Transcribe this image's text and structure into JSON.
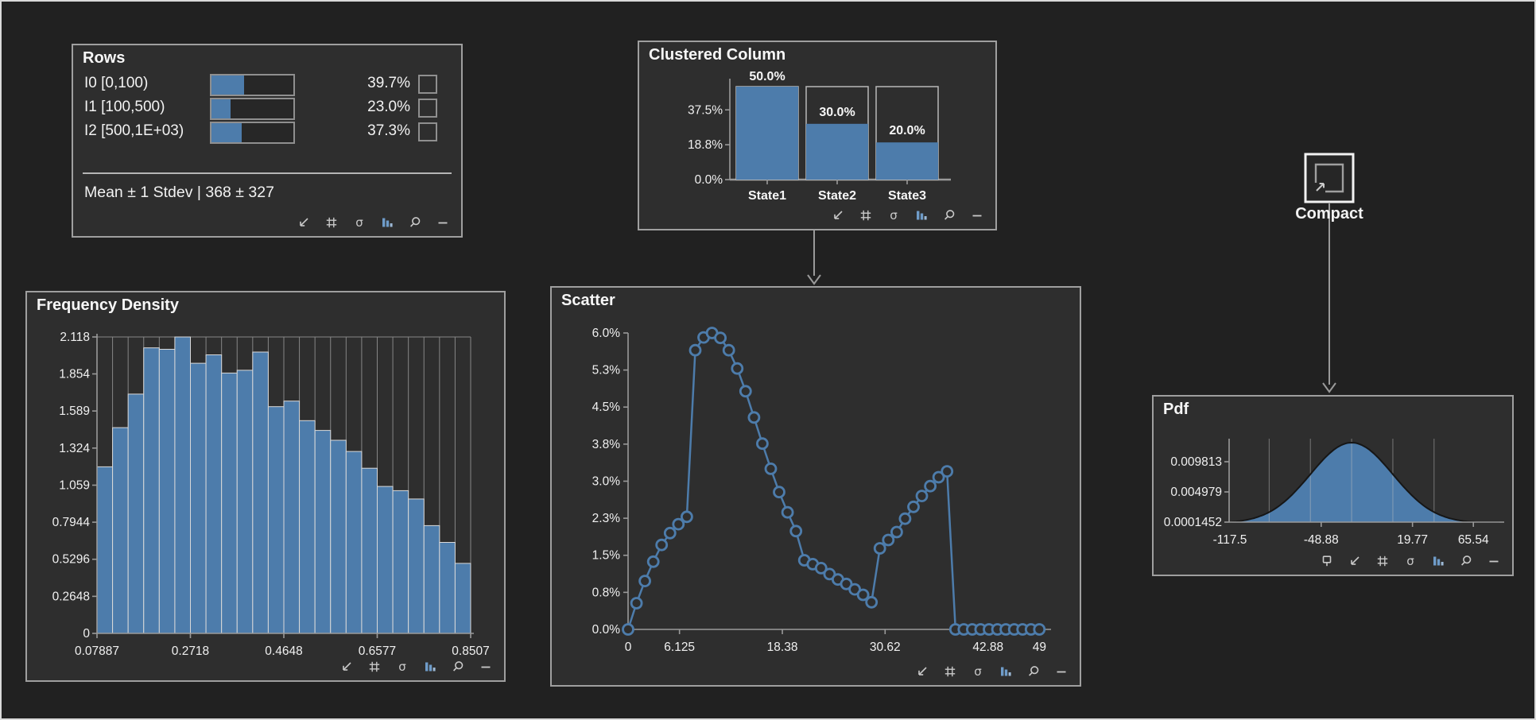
{
  "colors": {
    "canvas_bg": "#212121",
    "panel_bg": "#2e2e2e",
    "panel_border": "#9f9f9f",
    "accent_blue": "#4d7cab",
    "grid_gray": "#8a8a8a",
    "text": "#f2f2f2"
  },
  "rows_panel": {
    "title": "Rows",
    "items": [
      {
        "label": "I0 [0,100)",
        "percent": "39.7%",
        "fraction": 0.397
      },
      {
        "label": "I1 [100,500)",
        "percent": "23.0%",
        "fraction": 0.23
      },
      {
        "label": "I2 [500,1E+03)",
        "percent": "37.3%",
        "fraction": 0.373
      }
    ],
    "summary": "Mean ± 1 Stdev | 368 ± 327",
    "toolbar": [
      "resize-icon",
      "grid-icon",
      "sigma-icon",
      "bar-chart-icon",
      "zoom-icon",
      "minimize-icon"
    ]
  },
  "compact_node": {
    "label": "Compact"
  },
  "chart_data": [
    {
      "id": "clustered_column",
      "type": "bar",
      "title": "Clustered Column",
      "categories": [
        "State1",
        "State2",
        "State3"
      ],
      "values": [
        50.0,
        30.0,
        20.0
      ],
      "value_labels": [
        "50.0%",
        "30.0%",
        "20.0%"
      ],
      "yticks": [
        0,
        18.75,
        37.5
      ],
      "ytick_labels": [
        "0.0%",
        "18.8%",
        "37.5%"
      ],
      "ylim": [
        0,
        50
      ],
      "frame_value": 50,
      "toolbar": [
        "resize-icon",
        "grid-icon",
        "sigma-icon",
        "bar-chart-icon",
        "zoom-icon",
        "minimize-icon"
      ]
    },
    {
      "id": "scatter",
      "type": "scatter",
      "title": "Scatter",
      "x": [
        0,
        1,
        2,
        3,
        4,
        5,
        6,
        7,
        8,
        9,
        10,
        11,
        12,
        13,
        14,
        15,
        16,
        17,
        18,
        19,
        20,
        21,
        22,
        23,
        24,
        25,
        26,
        27,
        28,
        29,
        30,
        31,
        32,
        33,
        34,
        35,
        36,
        37,
        38,
        39,
        40,
        41,
        42,
        43,
        44,
        45,
        46,
        47,
        48,
        49
      ],
      "y": [
        0,
        0.53,
        0.98,
        1.37,
        1.71,
        1.95,
        2.13,
        2.28,
        5.65,
        5.91,
        6.0,
        5.9,
        5.65,
        5.28,
        4.82,
        4.29,
        3.76,
        3.25,
        2.78,
        2.37,
        1.99,
        1.4,
        1.32,
        1.24,
        1.12,
        1.01,
        0.92,
        0.81,
        0.7,
        0.55,
        1.64,
        1.81,
        1.97,
        2.24,
        2.48,
        2.7,
        2.9,
        3.08,
        3.2,
        0,
        0,
        0,
        0,
        0,
        0,
        0,
        0,
        0,
        0,
        0
      ],
      "y_unit": "%",
      "yticks": [
        0,
        0.75,
        1.5,
        2.25,
        3.0,
        3.75,
        4.5,
        5.25,
        6.0
      ],
      "ytick_labels": [
        "0.0%",
        "0.8%",
        "1.5%",
        "2.3%",
        "3.0%",
        "3.8%",
        "4.5%",
        "5.3%",
        "6.0%"
      ],
      "xticks": [
        0,
        6.125,
        18.38,
        30.62,
        42.88,
        49
      ],
      "xtick_labels": [
        "0",
        "6.125",
        "18.38",
        "30.62",
        "42.88",
        "49"
      ],
      "xlim": [
        0,
        49
      ],
      "ylim": [
        0,
        6
      ],
      "toolbar": [
        "resize-icon",
        "grid-icon",
        "sigma-icon",
        "bar-chart-icon",
        "zoom-icon",
        "minimize-icon"
      ]
    },
    {
      "id": "frequency_density",
      "type": "histogram",
      "title": "Frequency Density",
      "bin_start": 0.07887,
      "bin_end": 0.8507,
      "values": [
        1.19,
        1.47,
        1.71,
        2.04,
        2.03,
        2.118,
        1.93,
        1.99,
        1.86,
        1.88,
        2.01,
        1.62,
        1.66,
        1.52,
        1.45,
        1.38,
        1.3,
        1.18,
        1.05,
        1.02,
        0.96,
        0.77,
        0.65,
        0.5
      ],
      "yticks": [
        0,
        0.2648,
        0.5296,
        0.7944,
        1.059,
        1.324,
        1.589,
        1.854,
        2.118
      ],
      "ytick_labels": [
        "0",
        "0.2648",
        "0.5296",
        "0.7944",
        "1.059",
        "1.324",
        "1.589",
        "1.854",
        "2.118"
      ],
      "xticks": [
        0.07887,
        0.2718,
        0.4648,
        0.6577,
        0.8507
      ],
      "xtick_labels": [
        "0.07887",
        "0.2718",
        "0.4648",
        "0.6577",
        "0.8507"
      ],
      "ylim": [
        0,
        2.118
      ],
      "toolbar": [
        "resize-icon",
        "grid-icon",
        "sigma-icon",
        "bar-chart-icon",
        "zoom-icon",
        "minimize-icon"
      ]
    },
    {
      "id": "pdf",
      "type": "area",
      "title": "Pdf",
      "distribution": "normal",
      "mean": -26,
      "stdev": 31,
      "yticks": [
        0.0001452,
        0.004979,
        0.009813
      ],
      "ytick_labels": [
        "0.0001452",
        "0.004979",
        "0.009813"
      ],
      "xticks": [
        -117.5,
        -48.88,
        19.77,
        65.54
      ],
      "xtick_labels": [
        "-117.5",
        "-48.88",
        "19.77",
        "65.54"
      ],
      "xlim": [
        -117.5,
        86
      ],
      "toolbar": [
        "pin-icon",
        "resize-icon",
        "grid-icon",
        "sigma-icon",
        "bar-chart-icon",
        "zoom-icon",
        "minimize-icon"
      ]
    }
  ]
}
